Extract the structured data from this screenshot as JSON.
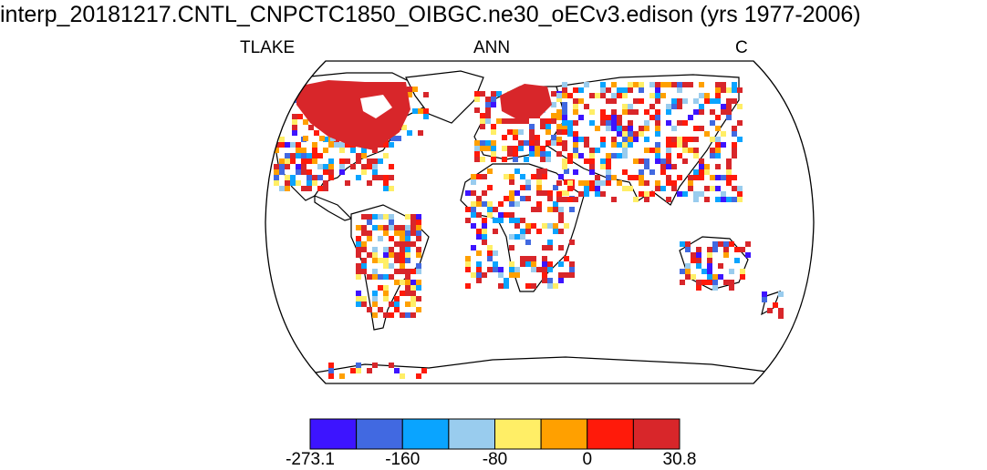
{
  "title": "interp_20181217.CNTL_CNPCTC1850_OIBGC.ne30_oECv3.edison (yrs 1977-2006)",
  "labels": {
    "variable": "TLAKE",
    "season": "ANN",
    "units": "C"
  },
  "colorbar": {
    "colors": [
      "#3d14ff",
      "#4169e1",
      "#0aa4ff",
      "#99ccee",
      "#ffee66",
      "#ffa000",
      "#ff1a0a",
      "#d8262a"
    ],
    "tick_labels": [
      {
        "text": "-273.1",
        "boundary": 0
      },
      {
        "text": "-160",
        "boundary": 2
      },
      {
        "text": "-80",
        "boundary": 4
      },
      {
        "text": "0",
        "boundary": 6
      },
      {
        "text": "30.8",
        "boundary": 8
      }
    ]
  }
}
